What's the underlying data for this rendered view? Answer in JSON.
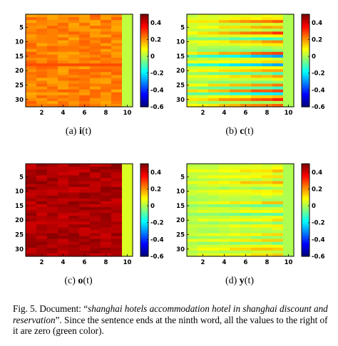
{
  "chart_data": [
    {
      "type": "heatmap",
      "panel_label": "(a)",
      "symbol": "i",
      "arg": "(t)",
      "xticks": [
        "2",
        "4",
        "6",
        "8",
        "10"
      ],
      "yticks": [
        "5",
        "10",
        "15",
        "20",
        "25",
        "30"
      ],
      "colorbar_ticks": [
        "0.4",
        "0.2",
        "0",
        "-0.2",
        "-0.4",
        "-0.6"
      ],
      "clim": [
        -0.6,
        0.5
      ],
      "n_rows": 32,
      "n_cols": 10,
      "pattern": "near-uniform ~0.2 (yellow) for words 1-9, word 10 ~0 (green); darker horizontal line at row ~18",
      "base_value": 0.22,
      "special_rows": [
        {
          "row": 18,
          "value": 0.28
        }
      ],
      "last_col_value": 0.02
    },
    {
      "type": "heatmap",
      "panel_label": "(b)",
      "symbol": "c",
      "arg": "(t)",
      "xticks": [
        "2",
        "4",
        "6",
        "8",
        "10"
      ],
      "yticks": [
        "5",
        "10",
        "15",
        "20",
        "25",
        "30"
      ],
      "colorbar_ticks": [
        "0.4",
        "0.2",
        "0",
        "-0.2",
        "-0.4",
        "-0.6"
      ],
      "clim": [
        -0.6,
        0.5
      ],
      "n_rows": 32,
      "n_cols": 10,
      "pattern": "horizontal bands growing in magnitude toward later words; word 10 ~0",
      "row_values": [
        0.08,
        0.12,
        0.25,
        0.05,
        0.18,
        0.02,
        0.3,
        0.1,
        -0.12,
        0.2,
        0.1,
        0.0,
        -0.05,
        0.28,
        -0.28,
        0.05,
        0.15,
        -0.3,
        0.08,
        0.2,
        -0.1,
        0.18,
        0.05,
        -0.05,
        0.22,
        -0.12,
        0.3,
        -0.2,
        0.15,
        0.32,
        0.0,
        0.25
      ],
      "last_col_value": 0.0
    },
    {
      "type": "heatmap",
      "panel_label": "(c)",
      "symbol": "o",
      "arg": "(t)",
      "xticks": [
        "2",
        "4",
        "6",
        "8",
        "10"
      ],
      "yticks": [
        "5",
        "10",
        "15",
        "20",
        "25",
        "30"
      ],
      "colorbar_ticks": [
        "0.4",
        "0.2",
        "0",
        "-0.2",
        "-0.4",
        "-0.6"
      ],
      "clim": [
        -0.6,
        0.5
      ],
      "n_rows": 32,
      "n_cols": 10,
      "pattern": "near-uniform ~0.45 (red) for words 1-9, word 10 ~0 (green)",
      "base_value": 0.45,
      "last_col_value": 0.05
    },
    {
      "type": "heatmap",
      "panel_label": "(d)",
      "symbol": "y",
      "arg": "(t)",
      "xticks": [
        "2",
        "4",
        "6",
        "8",
        "10"
      ],
      "yticks": [
        "5",
        "10",
        "15",
        "20",
        "25",
        "30"
      ],
      "colorbar_ticks": [
        "0.4",
        "0.2",
        "0",
        "-0.2",
        "-0.4",
        "-0.6"
      ],
      "clim": [
        -0.6,
        0.5
      ],
      "n_rows": 32,
      "n_cols": 10,
      "pattern": "mild horizontal bands (green/yellow/cyan) for words 1-9; word 10 ~0",
      "row_values": [
        0.05,
        0.08,
        0.15,
        0.05,
        0.12,
        0.02,
        0.18,
        0.06,
        -0.02,
        0.12,
        0.08,
        0.02,
        0.0,
        0.15,
        -0.08,
        0.05,
        0.1,
        -0.1,
        0.05,
        0.12,
        -0.03,
        0.1,
        0.04,
        0.0,
        0.12,
        -0.03,
        0.15,
        -0.05,
        0.08,
        0.16,
        0.02,
        0.12
      ],
      "last_col_value": 0.0
    }
  ],
  "caption": {
    "prefix": "Fig. 5.  Document: “",
    "document_text": "shanghai hotels accommodation hotel in shanghai discount and reservation",
    "suffix": "”. Since the sentence ends at the ninth word, all the values to the right of it are zero (green color)."
  }
}
